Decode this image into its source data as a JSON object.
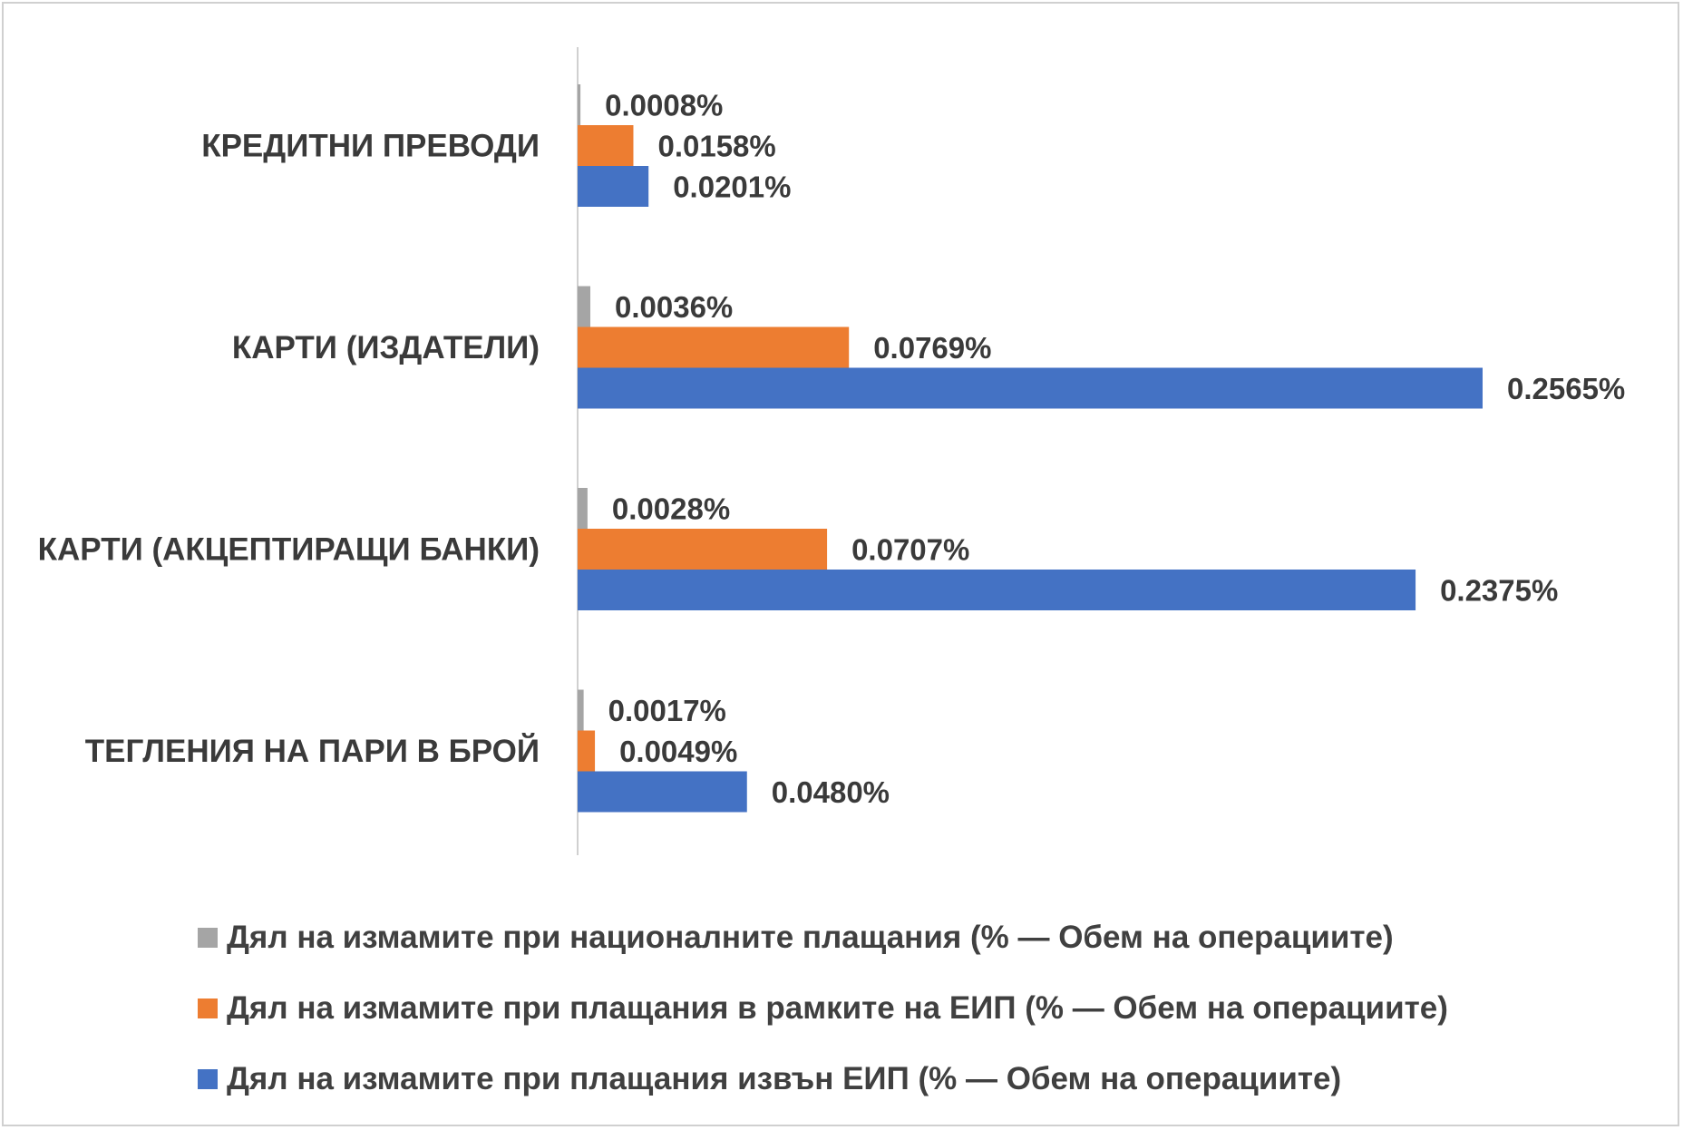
{
  "chart_data": {
    "type": "bar",
    "orientation": "horizontal",
    "categories": [
      "КРЕДИТНИ ПРЕВОДИ",
      "КАРТИ (ИЗДАТЕЛИ)",
      "КАРТИ (АКЦЕПТИРАЩИ БАНКИ)",
      "ТЕГЛЕНИЯ НА ПАРИ В БРОЙ"
    ],
    "series": [
      {
        "name": "Дял на измамите при националните плащания (% — Обем на операциите)",
        "color": "#a5a5a5",
        "values": [
          0.0008,
          0.0036,
          0.0028,
          0.0017
        ],
        "labels": [
          "0.0008%",
          "0.0036%",
          "0.0028%",
          "0.0017%"
        ]
      },
      {
        "name": "Дял на измамите при плащания в рамките на ЕИП (% — Обем на операциите)",
        "color": "#ed7d31",
        "values": [
          0.0158,
          0.0769,
          0.0707,
          0.0049
        ],
        "labels": [
          "0.0158%",
          "0.0769%",
          "0.0707%",
          "0.0049%"
        ]
      },
      {
        "name": "Дял на измамите при плащания извън ЕИП (% — Обем на операциите)",
        "color": "#4472c4",
        "values": [
          0.0201,
          0.2565,
          0.2375,
          0.048
        ],
        "labels": [
          "0.0201%",
          "0.2565%",
          "0.2375%",
          "0.0480%"
        ]
      }
    ],
    "xlim": [
      0,
      0.2565
    ],
    "axis_color": "#d0d0d0",
    "legend_position": "bottom",
    "grid": false
  }
}
